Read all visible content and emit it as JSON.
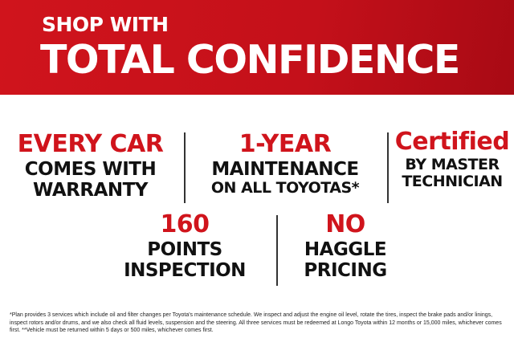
{
  "header": {
    "line1": "SHOP WITH",
    "line2": "TOTAL CONFIDENCE"
  },
  "features": [
    {
      "highlight": "EVERY CAR",
      "line1": "COMES WITH",
      "line2": "WARRANTY"
    },
    {
      "highlight": "1-YEAR",
      "line1": "MAINTENANCE",
      "line2": "ON ALL TOYOTAS*"
    },
    {
      "highlight": "Certified",
      "line1": "BY MASTER",
      "line2": "TECHNICIAN"
    },
    {
      "highlight": "160",
      "line1": "POINTS",
      "line2": "INSPECTION"
    },
    {
      "highlight": "NO",
      "line1": "HAGGLE",
      "line2": "PRICING"
    }
  ],
  "footnote": "*Plan provides 3 services which include oil and filter changes per Toyota's maintenance schedule. We inspect and adjust the engine oil level, rotate the tires, inspect the brake pads and/or linings, inspect rotors and/or drums, and we also check all fluid levels, suspension and the steering.  All three services must be redeemed at Longo Toyota within 12 months or 15,000 miles, whichever comes first. **Vehicle must be returned within 5 days or 500 miles, whichever comes first.",
  "colors": {
    "brand_red": "#d0141c"
  }
}
